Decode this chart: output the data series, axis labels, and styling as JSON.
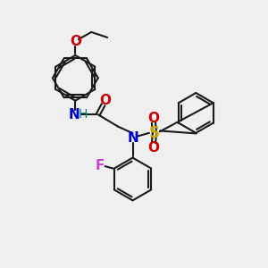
{
  "bg_color": "#efefef",
  "line_color": "#1a1a1a",
  "bond_lw": 1.5,
  "N_color": "#0000cc",
  "O_color": "#cc0000",
  "F_color": "#cc44cc",
  "S_color": "#ccaa00",
  "H_color": "#008888",
  "font_size": 10,
  "figsize": [
    3.0,
    3.0
  ],
  "dpi": 100,
  "xlim": [
    0,
    10
  ],
  "ylim": [
    0,
    10
  ]
}
